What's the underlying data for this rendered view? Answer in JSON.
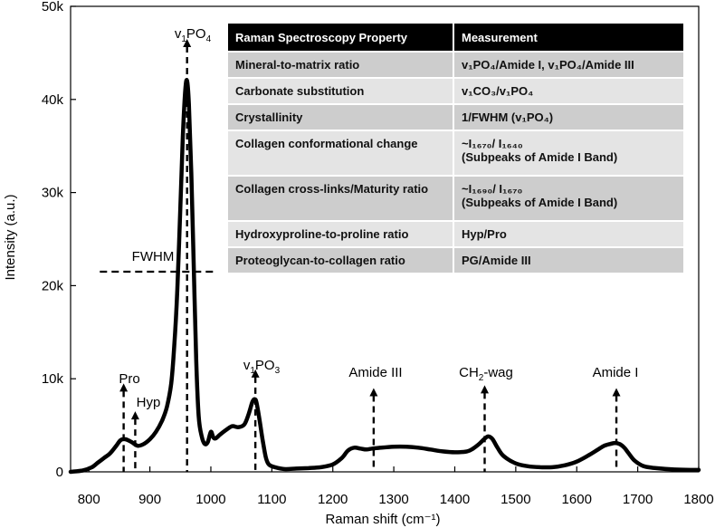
{
  "chart_data": {
    "type": "line",
    "xlabel": "Raman shift (cm⁻¹)",
    "ylabel": "Intensity (a.u.)",
    "xlim": [
      770,
      1800
    ],
    "ylim": [
      0,
      50000
    ],
    "x_ticks": [
      800,
      900,
      1000,
      1100,
      1200,
      1300,
      1400,
      1500,
      1600,
      1700,
      1800
    ],
    "x_tick_labels": [
      "800",
      "900",
      "1000",
      "1100",
      "1200",
      "1300",
      "1400",
      "1500",
      "1600",
      "1700",
      "1800"
    ],
    "y_ticks": [
      0,
      10000,
      20000,
      30000,
      40000,
      50000
    ],
    "y_tick_labels": [
      "0",
      "10k",
      "20k",
      "30k",
      "40k",
      "50k"
    ],
    "grid": false,
    "series": [
      {
        "x": [
          770,
          790,
          805,
          815,
          825,
          835,
          845,
          852,
          860,
          870,
          880,
          890,
          900,
          910,
          920,
          928,
          935,
          940,
          945,
          950,
          954,
          958,
          961,
          964,
          968,
          972,
          976,
          980,
          985,
          990,
          995,
          1000,
          1004,
          1008,
          1015,
          1025,
          1035,
          1045,
          1055,
          1062,
          1068,
          1072,
          1075,
          1080,
          1085,
          1090,
          1095,
          1105,
          1120,
          1140,
          1160,
          1180,
          1200,
          1215,
          1225,
          1235,
          1245,
          1255,
          1265,
          1280,
          1300,
          1320,
          1340,
          1360,
          1380,
          1400,
          1420,
          1430,
          1440,
          1448,
          1455,
          1462,
          1470,
          1480,
          1500,
          1520,
          1540,
          1560,
          1580,
          1600,
          1620,
          1635,
          1645,
          1655,
          1663,
          1670,
          1678,
          1685,
          1695,
          1710,
          1730,
          1760,
          1800
        ],
        "y": [
          0,
          150,
          500,
          1000,
          1500,
          2000,
          2800,
          3400,
          3500,
          3200,
          2800,
          3000,
          3500,
          4300,
          5500,
          7000,
          9500,
          13500,
          19500,
          28500,
          36000,
          41000,
          42000,
          39500,
          32000,
          22000,
          12000,
          6000,
          3800,
          3000,
          3200,
          4300,
          3700,
          3600,
          4000,
          4500,
          4900,
          4800,
          5100,
          6200,
          7500,
          7800,
          7400,
          5500,
          3400,
          1600,
          800,
          500,
          300,
          350,
          400,
          500,
          800,
          1500,
          2300,
          2600,
          2500,
          2400,
          2500,
          2600,
          2700,
          2700,
          2600,
          2400,
          2200,
          2100,
          2200,
          2500,
          3000,
          3500,
          3800,
          3500,
          2600,
          1700,
          900,
          600,
          500,
          500,
          700,
          1100,
          1800,
          2400,
          2800,
          3000,
          3100,
          3000,
          2600,
          2000,
          1200,
          600,
          400,
          250,
          200
        ]
      }
    ],
    "annotations": [
      {
        "text": "Pro",
        "x": 857,
        "y_arrow_top": 9500
      },
      {
        "text": "Hyp",
        "x": 876,
        "y_arrow_top": 6500
      },
      {
        "text": "v1PO4",
        "x": 961,
        "y_arrow_top": 46500
      },
      {
        "text": "v1PO3",
        "x": 1073,
        "y_arrow_top": 11000
      },
      {
        "text": "Amide III",
        "x": 1267,
        "y_arrow_top": 9000
      },
      {
        "text": "CH2-wag",
        "x": 1449,
        "y_arrow_top": 9300
      },
      {
        "text": "Amide I",
        "x": 1665,
        "y_arrow_top": 9000
      }
    ],
    "fwhm": {
      "text": "FWHM",
      "y": 21500,
      "x_start": 858,
      "x_end": 1005
    }
  },
  "labels": {
    "v1po4": {
      "pre": "v",
      "sub1": "1",
      "mid": "PO",
      "sub2": "4"
    },
    "v1po3": {
      "pre": "v",
      "sub1": "1",
      "mid": "PO",
      "sub2": "3"
    },
    "ch2": {
      "pre": "CH",
      "sub1": "2",
      "post": "-wag"
    },
    "pro": "Pro",
    "hyp": "Hyp",
    "amide3": "Amide III",
    "amide1": "Amide I",
    "fwhm": "FWHM"
  },
  "table": {
    "header": {
      "property": "Raman Spectroscopy Property",
      "measurement": "Measurement"
    },
    "rows": [
      {
        "property": "Mineral-to-matrix ratio",
        "measurement": "v₁PO₄/Amide I, v₁PO₄/Amide III"
      },
      {
        "property": "Carbonate substitution",
        "measurement": "v₁CO₃/v₁PO₄"
      },
      {
        "property": "Crystallinity",
        "measurement": "1/FWHM (v₁PO₄)"
      },
      {
        "property": "Collagen conformational change",
        "measurement": "~I₁₆₇₀/ I₁₆₄₀",
        "measurement2": "(Subpeaks of Amide I Band)"
      },
      {
        "property": "Collagen cross-links/Maturity ratio",
        "measurement": "~I₁₆₉₀/ I₁₆₇₀",
        "measurement2": "(Subpeaks of Amide I Band)"
      },
      {
        "property": "Hydroxyproline-to-proline ratio",
        "measurement": "Hyp/Pro"
      },
      {
        "property": "Proteoglycan-to-collagen ratio",
        "measurement": "PG/Amide III"
      }
    ]
  }
}
